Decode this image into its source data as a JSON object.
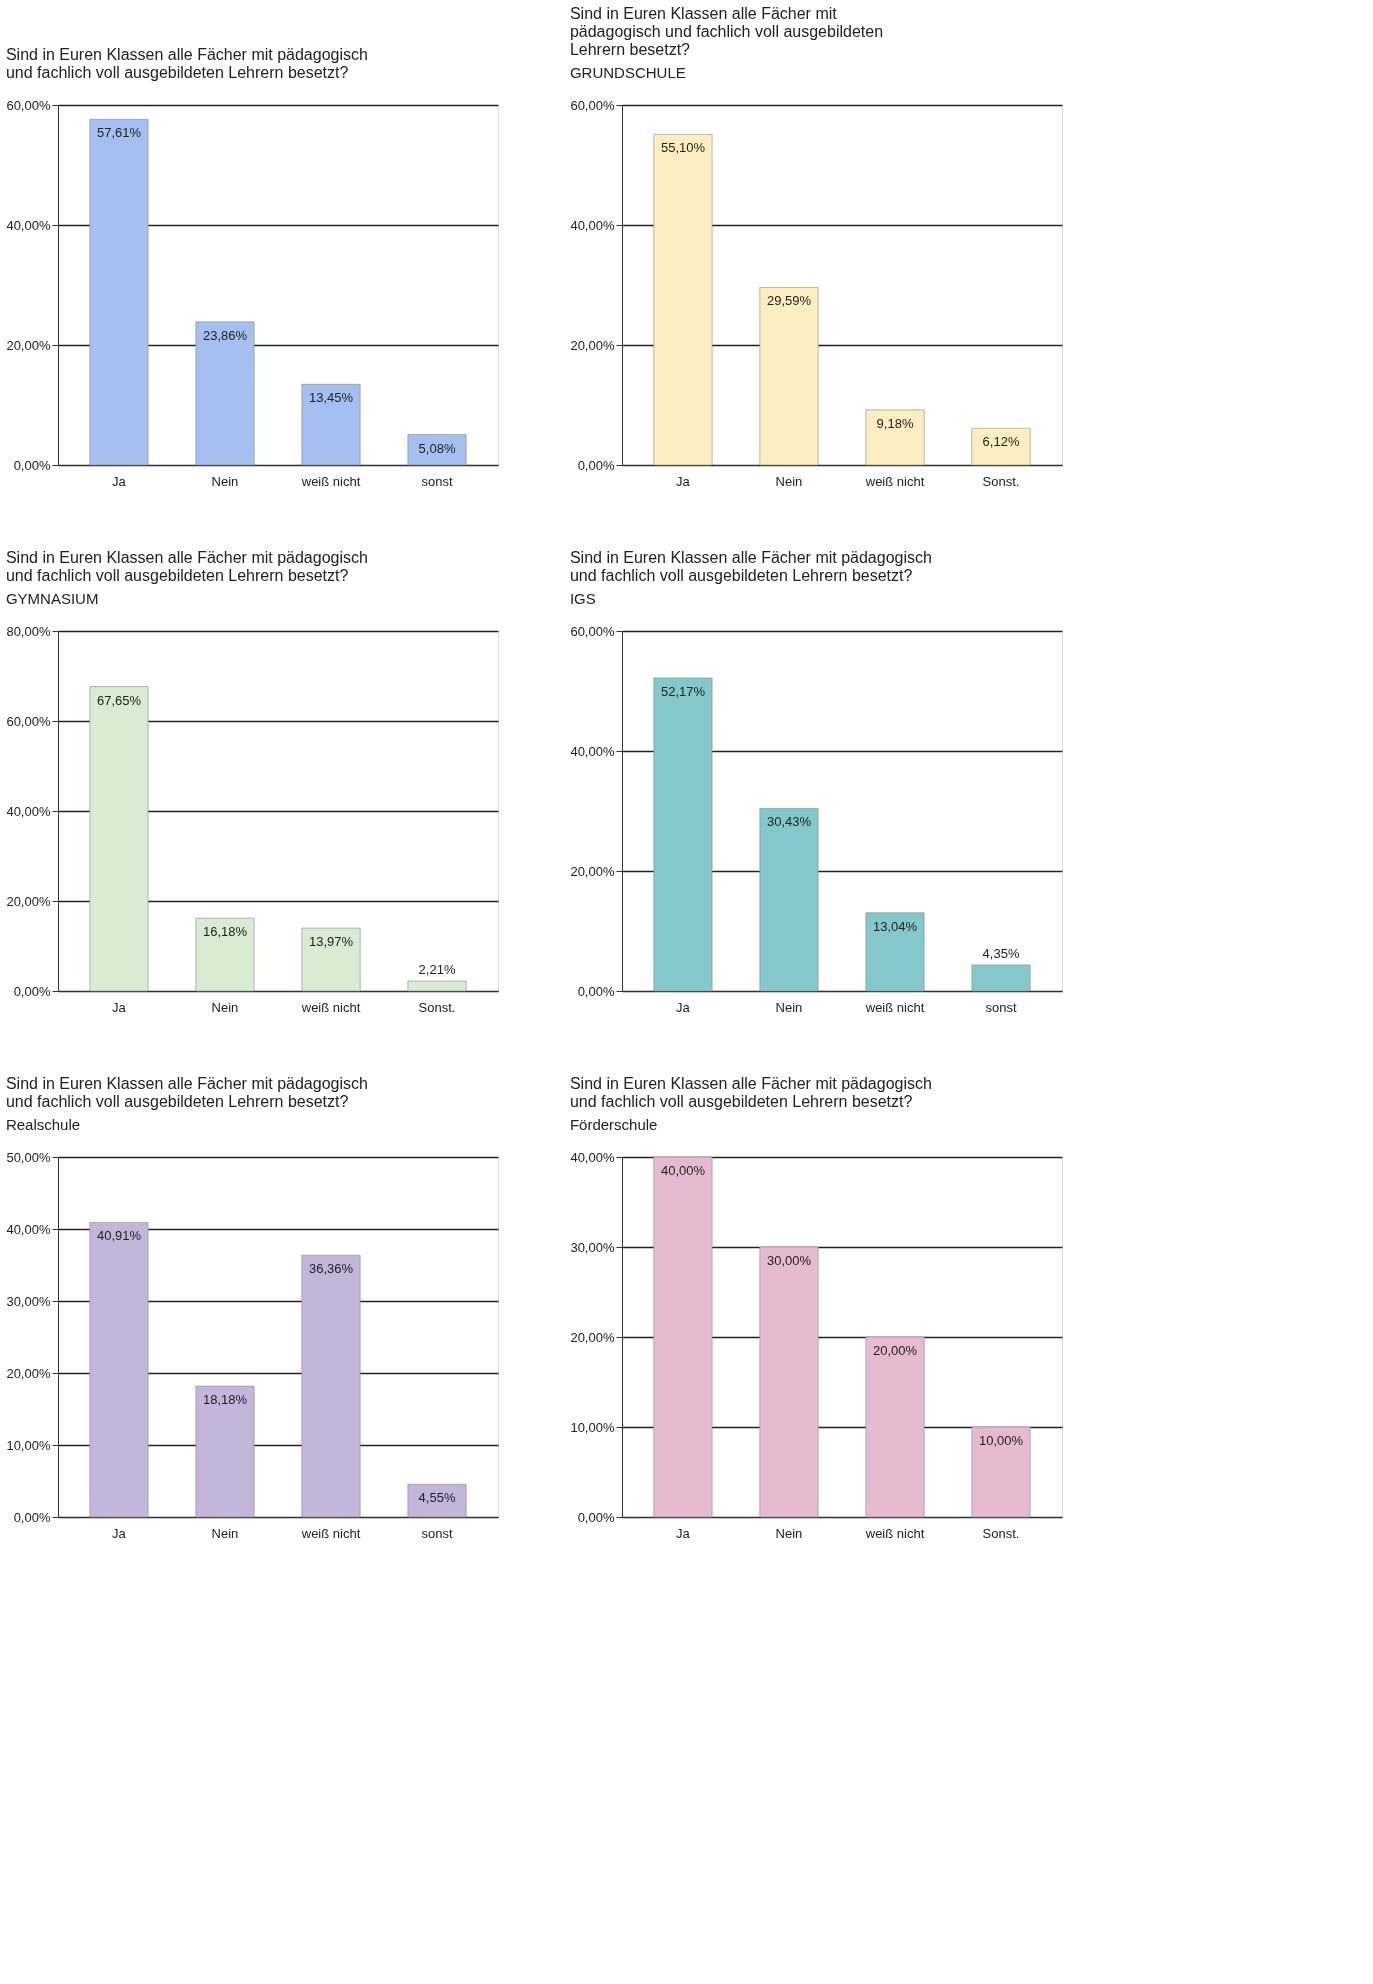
{
  "chart_data": [
    {
      "type": "bar",
      "title": "Sind in Euren Klassen alle Fächer mit pädagogisch\nund fachlich voll ausgebildeten Lehrern besetzt?",
      "categories": [
        "Ja",
        "Nein",
        "weiß nicht",
        "sonst"
      ],
      "values": [
        57.61,
        23.86,
        13.45,
        5.08
      ],
      "value_labels": [
        "57,61%",
        "23,86%",
        "13,45%",
        "5,08%"
      ],
      "color": "#a4bff0",
      "ylim": [
        0,
        60
      ],
      "yticks": [
        {
          "value": 0,
          "label": "0,00%"
        },
        {
          "value": 20,
          "label": "20,00%"
        },
        {
          "value": 40,
          "label": "40,00%"
        },
        {
          "value": 60,
          "label": "60,00%"
        }
      ],
      "grid": "y",
      "legend": false
    },
    {
      "type": "bar",
      "title": "Sind in Euren Klassen alle Fächer mit\npädagogisch und fachlich voll ausgebildeten\nLehrern besetzt?",
      "subtitle": "GRUNDSCHULE",
      "categories": [
        "Ja",
        "Nein",
        "weiß nicht",
        "Sonst."
      ],
      "values": [
        55.1,
        29.59,
        9.18,
        6.12
      ],
      "value_labels": [
        "55,10%",
        "29,59%",
        "9,18%",
        "6,12%"
      ],
      "color": "#fdeec2",
      "ylim": [
        0,
        60
      ],
      "yticks": [
        {
          "value": 0,
          "label": "0,00%"
        },
        {
          "value": 20,
          "label": "20,00%"
        },
        {
          "value": 40,
          "label": "40,00%"
        },
        {
          "value": 60,
          "label": "60,00%"
        }
      ],
      "grid": "y",
      "legend": false
    },
    {
      "type": "bar",
      "title": "Sind in Euren Klassen alle Fächer mit pädagogisch\nund fachlich voll ausgebildeten Lehrern besetzt?",
      "subtitle": "GYMNASIUM",
      "categories": [
        "Ja",
        "Nein",
        "weiß nicht",
        "Sonst."
      ],
      "values": [
        67.65,
        16.18,
        13.97,
        2.21
      ],
      "value_labels": [
        "67,65%",
        "16,18%",
        "13,97%",
        "2,21%"
      ],
      "color": "#d9ebd3",
      "ylim": [
        0,
        80
      ],
      "yticks": [
        {
          "value": 0,
          "label": "0,00%"
        },
        {
          "value": 20,
          "label": "20,00%"
        },
        {
          "value": 40,
          "label": "40,00%"
        },
        {
          "value": 60,
          "label": "60,00%"
        },
        {
          "value": 80,
          "label": "80,00%"
        }
      ],
      "grid": "y",
      "legend": false
    },
    {
      "type": "bar",
      "title": "Sind in Euren Klassen alle Fächer mit pädagogisch\nund fachlich voll ausgebildeten Lehrern besetzt?",
      "subtitle": "IGS",
      "categories": [
        "Ja",
        "Nein",
        "weiß nicht",
        "sonst"
      ],
      "values": [
        52.17,
        30.43,
        13.04,
        4.35
      ],
      "value_labels": [
        "52,17%",
        "30,43%",
        "13,04%",
        "4,35%"
      ],
      "color": "#84c8cc",
      "ylim": [
        0,
        60
      ],
      "yticks": [
        {
          "value": 0,
          "label": "0,00%"
        },
        {
          "value": 20,
          "label": "20,00%"
        },
        {
          "value": 40,
          "label": "40,00%"
        },
        {
          "value": 60,
          "label": "60,00%"
        }
      ],
      "grid": "y",
      "legend": false
    },
    {
      "type": "bar",
      "title": "Sind in Euren Klassen alle Fächer mit pädagogisch\nund fachlich voll ausgebildeten Lehrern besetzt?",
      "subtitle": "Realschule",
      "categories": [
        "Ja",
        "Nein",
        "weiß nicht",
        "sonst"
      ],
      "values": [
        40.91,
        18.18,
        36.36,
        4.55
      ],
      "value_labels": [
        "40,91%",
        "18,18%",
        "36,36%",
        "4,55%"
      ],
      "color": "#c4b5da",
      "ylim": [
        0,
        50
      ],
      "yticks": [
        {
          "value": 0,
          "label": "0,00%"
        },
        {
          "value": 10,
          "label": "10,00%"
        },
        {
          "value": 20,
          "label": "20,00%"
        },
        {
          "value": 30,
          "label": "30,00%"
        },
        {
          "value": 40,
          "label": "40,00%"
        },
        {
          "value": 50,
          "label": "50,00%"
        }
      ],
      "grid": "y",
      "legend": false
    },
    {
      "type": "bar",
      "title": "Sind in Euren Klassen alle Fächer mit pädagogisch\nund fachlich voll ausgebildeten Lehrern besetzt?",
      "subtitle": "Förderschule",
      "categories": [
        "Ja",
        "Nein",
        "weiß nicht",
        "Sonst."
      ],
      "values": [
        40.0,
        30.0,
        20.0,
        10.0
      ],
      "value_labels": [
        "40,00%",
        "30,00%",
        "20,00%",
        "10,00%"
      ],
      "color": "#e6bbd1",
      "ylim": [
        0,
        40
      ],
      "yticks": [
        {
          "value": 0,
          "label": "0,00%"
        },
        {
          "value": 10,
          "label": "10,00%"
        },
        {
          "value": 20,
          "label": "20,00%"
        },
        {
          "value": 30,
          "label": "30,00%"
        },
        {
          "value": 40,
          "label": "40,00%"
        }
      ],
      "grid": "y",
      "legend": false
    }
  ]
}
